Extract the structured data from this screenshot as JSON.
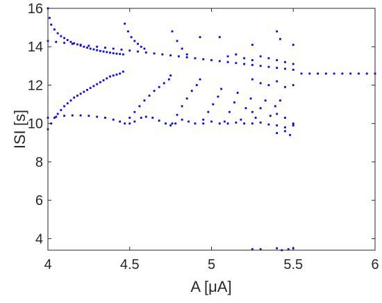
{
  "chart_data": {
    "type": "scatter",
    "xlabel": "A [μA]",
    "ylabel": "ISI [s]",
    "xlim": [
      4,
      6
    ],
    "ylim": [
      3.4,
      16
    ],
    "xticks": [
      "4",
      "4.5",
      "5",
      "5.5",
      "6"
    ],
    "yticks": [
      "4",
      "6",
      "8",
      "10",
      "12",
      "14",
      "16"
    ],
    "grid": false,
    "marker_color": "#0000ff",
    "series": [
      {
        "points": [
          [
            4.0,
            16.0
          ],
          [
            4.01,
            15.5
          ],
          [
            4.02,
            15.15
          ],
          [
            4.04,
            14.9
          ],
          [
            4.06,
            14.7
          ],
          [
            4.08,
            14.55
          ],
          [
            4.1,
            14.45
          ],
          [
            4.12,
            14.35
          ],
          [
            4.14,
            14.25
          ],
          [
            4.16,
            14.18
          ],
          [
            4.18,
            14.12
          ],
          [
            4.2,
            14.06
          ],
          [
            4.22,
            14.0
          ],
          [
            4.24,
            13.95
          ],
          [
            4.26,
            13.9
          ],
          [
            4.28,
            13.86
          ],
          [
            4.3,
            13.82
          ],
          [
            4.32,
            13.78
          ],
          [
            4.34,
            13.75
          ],
          [
            4.36,
            13.72
          ],
          [
            4.38,
            13.69
          ],
          [
            4.4,
            13.66
          ],
          [
            4.42,
            13.64
          ],
          [
            4.44,
            13.62
          ],
          [
            4.46,
            13.6
          ],
          [
            4.0,
            14.3
          ],
          [
            4.05,
            14.25
          ],
          [
            4.1,
            14.2
          ],
          [
            4.15,
            14.15
          ],
          [
            4.2,
            14.1
          ],
          [
            4.25,
            14.05
          ],
          [
            4.3,
            14.0
          ],
          [
            4.35,
            13.95
          ],
          [
            4.4,
            13.9
          ],
          [
            4.45,
            13.85
          ],
          [
            4.5,
            13.8
          ],
          [
            4.55,
            13.75
          ],
          [
            4.6,
            13.7
          ],
          [
            4.65,
            13.65
          ],
          [
            4.7,
            13.6
          ],
          [
            4.75,
            13.55
          ],
          [
            4.8,
            13.5
          ],
          [
            4.85,
            13.45
          ],
          [
            4.9,
            13.4
          ],
          [
            4.95,
            13.35
          ],
          [
            5.0,
            13.3
          ],
          [
            5.05,
            13.25
          ],
          [
            5.1,
            13.2
          ],
          [
            5.15,
            13.15
          ],
          [
            5.2,
            13.1
          ],
          [
            5.25,
            13.05
          ],
          [
            5.3,
            13.0
          ],
          [
            5.35,
            12.95
          ],
          [
            5.4,
            12.9
          ],
          [
            5.45,
            12.85
          ],
          [
            5.5,
            12.8
          ],
          [
            5.55,
            12.6
          ],
          [
            5.6,
            12.6
          ],
          [
            5.65,
            12.6
          ],
          [
            5.7,
            12.6
          ],
          [
            5.75,
            12.6
          ],
          [
            5.8,
            12.6
          ],
          [
            5.85,
            12.6
          ],
          [
            5.9,
            12.6
          ],
          [
            5.95,
            12.6
          ],
          [
            6.0,
            12.6
          ],
          [
            4.0,
            9.7
          ],
          [
            4.02,
            10.0
          ],
          [
            4.04,
            10.3
          ],
          [
            4.06,
            10.5
          ],
          [
            4.08,
            10.7
          ],
          [
            4.1,
            10.9
          ],
          [
            4.12,
            11.05
          ],
          [
            4.14,
            11.2
          ],
          [
            4.16,
            11.35
          ],
          [
            4.18,
            11.45
          ],
          [
            4.2,
            11.55
          ],
          [
            4.22,
            11.65
          ],
          [
            4.24,
            11.75
          ],
          [
            4.26,
            11.85
          ],
          [
            4.28,
            11.95
          ],
          [
            4.3,
            12.05
          ],
          [
            4.32,
            12.15
          ],
          [
            4.34,
            12.25
          ],
          [
            4.36,
            12.35
          ],
          [
            4.38,
            12.45
          ],
          [
            4.4,
            12.5
          ],
          [
            4.42,
            12.55
          ],
          [
            4.44,
            12.6
          ],
          [
            4.46,
            12.7
          ],
          [
            4.0,
            10.3
          ],
          [
            4.05,
            10.35
          ],
          [
            4.1,
            10.4
          ],
          [
            4.15,
            10.42
          ],
          [
            4.2,
            10.42
          ],
          [
            4.25,
            10.4
          ],
          [
            4.3,
            10.35
          ],
          [
            4.35,
            10.3
          ],
          [
            4.4,
            10.2
          ],
          [
            4.44,
            10.1
          ],
          [
            4.47,
            10.0
          ],
          [
            4.5,
            10.0
          ],
          [
            4.53,
            10.1
          ],
          [
            4.57,
            10.3
          ],
          [
            4.6,
            10.35
          ],
          [
            4.64,
            10.3
          ],
          [
            4.68,
            10.15
          ],
          [
            4.72,
            10.0
          ],
          [
            4.75,
            9.9
          ],
          [
            4.78,
            10.0
          ],
          [
            4.82,
            10.2
          ],
          [
            4.86,
            10.1
          ],
          [
            4.9,
            10.0
          ],
          [
            4.95,
            10.0
          ],
          [
            5.0,
            10.1
          ],
          [
            5.05,
            10.0
          ],
          [
            5.1,
            10.0
          ],
          [
            5.15,
            10.05
          ],
          [
            5.2,
            10.0
          ],
          [
            5.25,
            10.0
          ],
          [
            5.3,
            10.05
          ],
          [
            5.35,
            9.95
          ],
          [
            5.4,
            9.9
          ],
          [
            5.45,
            9.8
          ],
          [
            5.5,
            9.9
          ],
          [
            4.47,
            15.2
          ],
          [
            4.49,
            14.8
          ],
          [
            4.51,
            14.5
          ],
          [
            4.53,
            14.3
          ],
          [
            4.55,
            14.15
          ],
          [
            4.57,
            14.0
          ],
          [
            4.59,
            13.9
          ],
          [
            4.5,
            10.3
          ],
          [
            4.53,
            10.6
          ],
          [
            4.56,
            10.9
          ],
          [
            4.59,
            11.2
          ],
          [
            4.62,
            11.45
          ],
          [
            4.65,
            11.7
          ],
          [
            4.68,
            11.9
          ],
          [
            4.71,
            12.1
          ],
          [
            4.74,
            12.3
          ],
          [
            4.75,
            12.5
          ],
          [
            4.76,
            14.8
          ],
          [
            4.79,
            14.3
          ],
          [
            4.82,
            13.9
          ],
          [
            4.85,
            13.6
          ],
          [
            4.76,
            10.0
          ],
          [
            4.79,
            10.45
          ],
          [
            4.82,
            10.9
          ],
          [
            4.85,
            11.3
          ],
          [
            4.88,
            11.7
          ],
          [
            4.91,
            12.0
          ],
          [
            4.93,
            12.3
          ],
          [
            4.93,
            14.5
          ],
          [
            5.05,
            14.5
          ],
          [
            5.25,
            14.1
          ],
          [
            5.4,
            14.8
          ],
          [
            5.42,
            14.4
          ],
          [
            5.5,
            14.1
          ],
          [
            4.95,
            10.2
          ],
          [
            4.98,
            10.6
          ],
          [
            5.01,
            11.0
          ],
          [
            5.04,
            11.4
          ],
          [
            5.06,
            11.8
          ],
          [
            5.08,
            10.1
          ],
          [
            5.11,
            10.6
          ],
          [
            5.14,
            11.1
          ],
          [
            5.16,
            11.6
          ],
          [
            5.18,
            10.2
          ],
          [
            5.21,
            10.8
          ],
          [
            5.24,
            11.3
          ],
          [
            5.27,
            10.3
          ],
          [
            5.3,
            10.8
          ],
          [
            5.33,
            11.2
          ],
          [
            5.36,
            10.4
          ],
          [
            5.39,
            10.9
          ],
          [
            5.42,
            11.2
          ],
          [
            5.1,
            13.5
          ],
          [
            5.15,
            13.6
          ],
          [
            5.2,
            13.4
          ],
          [
            5.25,
            13.3
          ],
          [
            5.3,
            13.5
          ],
          [
            5.35,
            13.4
          ],
          [
            5.4,
            13.3
          ],
          [
            5.45,
            13.2
          ],
          [
            5.5,
            13.1
          ],
          [
            5.25,
            12.3
          ],
          [
            5.3,
            12.1
          ],
          [
            5.35,
            12.0
          ],
          [
            5.4,
            12.2
          ],
          [
            5.45,
            11.9
          ],
          [
            5.5,
            12.0
          ],
          [
            5.25,
            10.6
          ],
          [
            5.4,
            10.5
          ],
          [
            5.45,
            10.3
          ],
          [
            5.5,
            10.0
          ],
          [
            5.4,
            9.5
          ],
          [
            5.45,
            9.6
          ],
          [
            5.48,
            9.4
          ],
          [
            5.25,
            3.45
          ],
          [
            5.3,
            3.45
          ],
          [
            5.4,
            3.5
          ],
          [
            5.43,
            3.4
          ],
          [
            5.47,
            3.45
          ],
          [
            5.5,
            3.5
          ]
        ]
      }
    ]
  }
}
